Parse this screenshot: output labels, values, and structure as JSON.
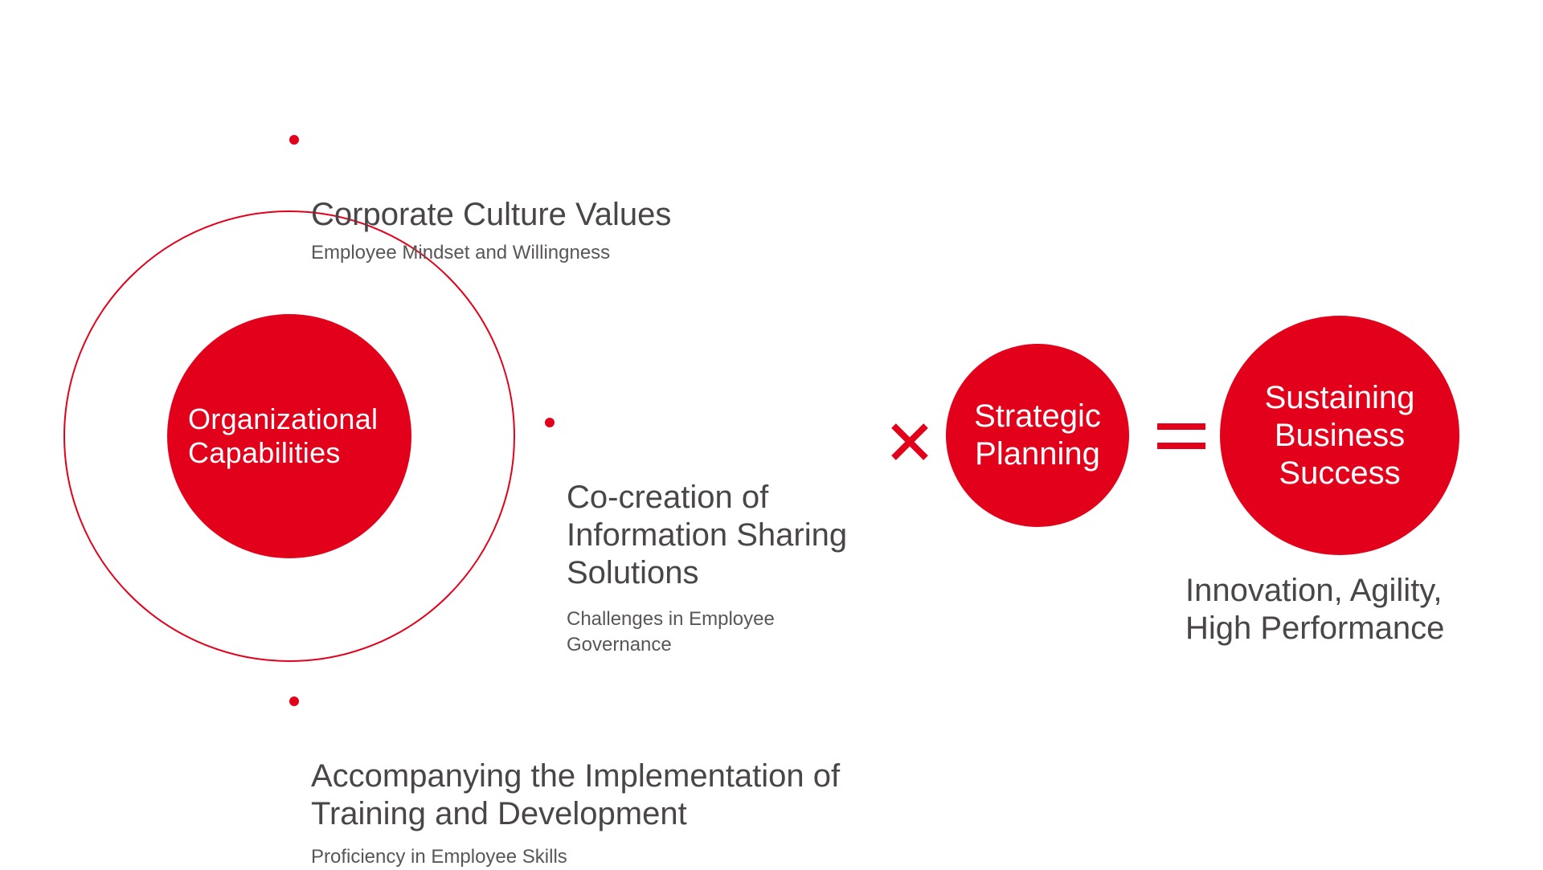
{
  "colors": {
    "accent": "#e2001a",
    "text": "#4a4547",
    "background": "#ffffff"
  },
  "core": {
    "label": "Organizational\nCapabilities"
  },
  "items": [
    {
      "title": "Corporate Culture Values",
      "subtitle": "Employee Mindset and Willingness"
    },
    {
      "title": "Co-creation of\nInformation Sharing\nSolutions",
      "subtitle": "Challenges in Employee\nGovernance"
    },
    {
      "title": "Accompanying the Implementation of\nTraining and Development",
      "subtitle": "Proficiency in Employee Skills"
    }
  ],
  "operators": {
    "multiply": "multiply-icon",
    "equals": "equals-icon"
  },
  "strategic": {
    "label": "Strategic\nPlanning"
  },
  "result": {
    "label": "Sustaining\nBusiness\nSuccess",
    "outcome": "Innovation, Agility,\nHigh Performance"
  }
}
